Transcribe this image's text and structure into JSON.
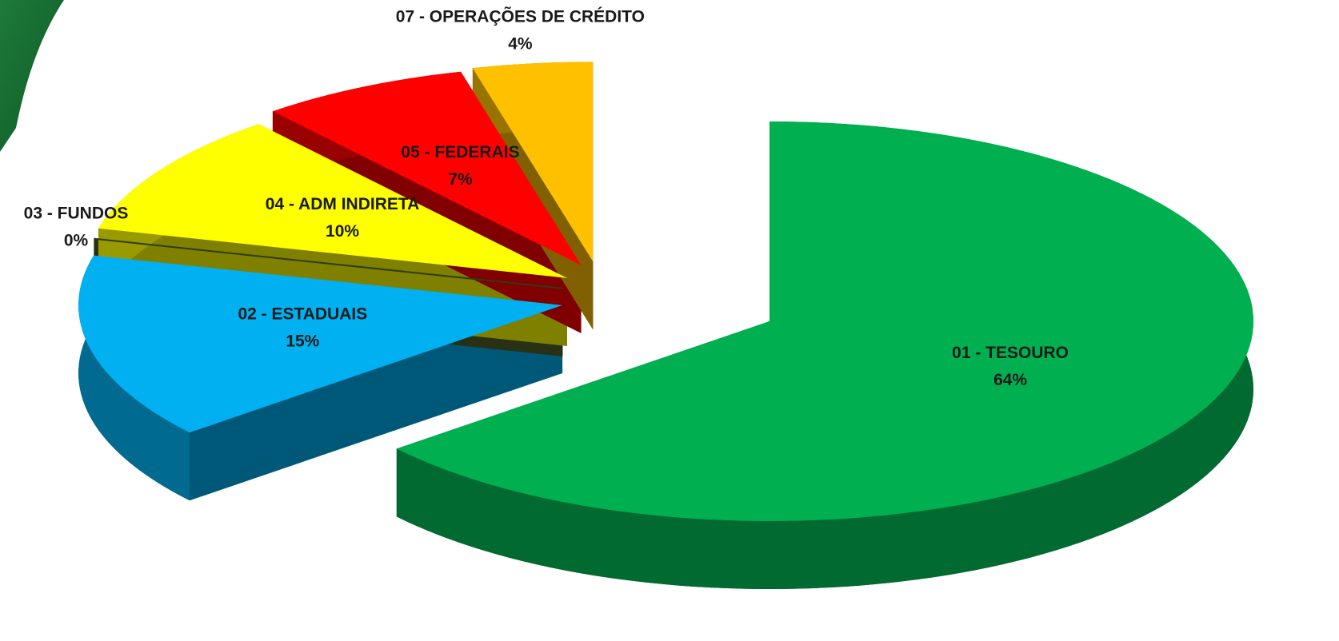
{
  "chart_data": {
    "type": "pie",
    "categories": [
      "01 - TESOURO",
      "02 - ESTADUAIS",
      "03 - FUNDOS",
      "04 - ADM INDIRETA",
      "05 - FEDERAIS",
      "07 - OPERAÇÕES DE CRÉDITO"
    ],
    "values": [
      64,
      15,
      0,
      10,
      7,
      4
    ],
    "value_labels": [
      "64%",
      "15%",
      "0%",
      "10%",
      "7%",
      "4%"
    ],
    "colors": [
      "#00b050",
      "#00b0f0",
      "#4f6228",
      "#ffff00",
      "#ff0000",
      "#ffc000"
    ]
  }
}
